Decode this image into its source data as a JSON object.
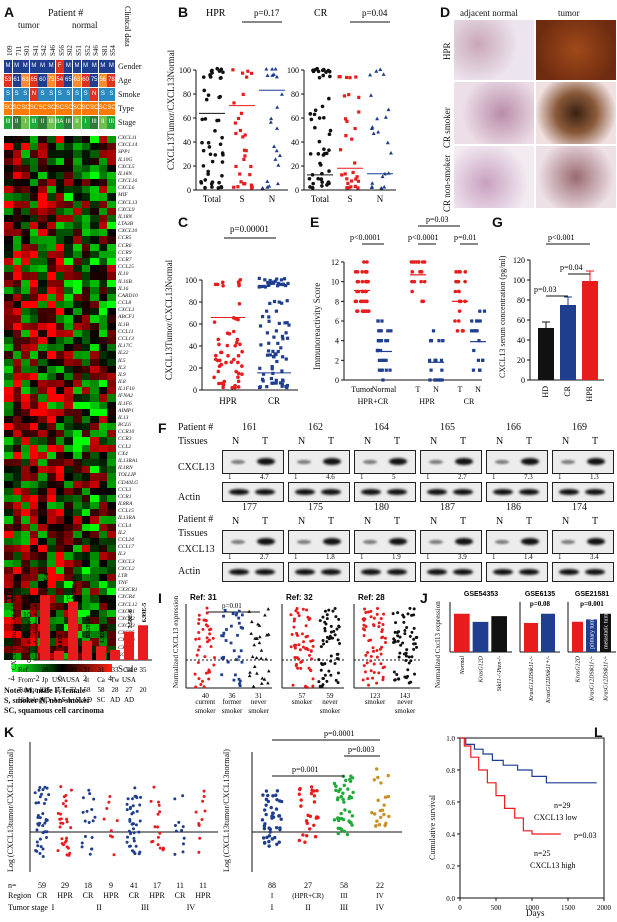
{
  "panelA": {
    "label": "A",
    "patient_header": "Patient #",
    "tumor_label": "tumor",
    "normal_label": "normal",
    "clinical_label": "Clinical data",
    "patient_ids": [
      "109",
      "711",
      "S01",
      "S41",
      "S42",
      "S46",
      "S56",
      "S02",
      "S51",
      "S52",
      "S46",
      "S81",
      "S54"
    ],
    "track_labels": [
      "Gender",
      "Age",
      "Smoke",
      "Type",
      "Stage"
    ],
    "gender": [
      "M",
      "M",
      "M",
      "M",
      "M",
      "M",
      "F",
      "M",
      "M",
      "M",
      "M",
      "M",
      "M"
    ],
    "age": [
      "53",
      "61",
      "63",
      "65",
      "60",
      "75",
      "54",
      "65",
      "63",
      "60",
      "75",
      "56",
      "78"
    ],
    "smoke": [
      "S",
      "S",
      "S",
      "N",
      "S",
      "S",
      "S",
      "S",
      "S",
      "S",
      "N",
      "S",
      "S"
    ],
    "type": [
      "SC",
      "SC",
      "SC",
      "SC",
      "SC",
      "SC",
      "SC",
      "SC",
      "SC",
      "SC",
      "SC",
      "SC",
      "SC"
    ],
    "stage": [
      "III",
      "II",
      "I",
      "III",
      "II",
      "III",
      "IIA",
      "III",
      "II",
      "I",
      "III",
      "II",
      "III"
    ],
    "genes": [
      "CXCL11",
      "CXCL14",
      "SPP1",
      "IL10G",
      "CXCL5",
      "IL18N",
      "CXCL16",
      "CXCL6",
      "MIF",
      "CXCL13",
      "CXCL9",
      "IL18N",
      "LTA3B",
      "CXCL10",
      "CCR5",
      "CCR6",
      "CCR9",
      "CCR7",
      "CCL25",
      "IL10",
      "IL16B",
      "IL16",
      "CARD10",
      "CCL8",
      "CXCL1",
      "ABCF1",
      "IL1B",
      "CCL11",
      "CCL13",
      "IL17C",
      "IL22",
      "IL5",
      "IL3",
      "IL9",
      "IL8",
      "IL1F10",
      "IFNA2",
      "IL1F6",
      "AIMP1",
      "IL13",
      "BCL6",
      "CCR10",
      "CCR3",
      "CCL2",
      "CX4",
      "IL13RA1",
      "IL1RN",
      "TOLLIP",
      "CD40LG",
      "CCL3",
      "CCR1",
      "IL8RA",
      "CCL15",
      "IL13RA",
      "CCL4",
      "IL2",
      "CCL24",
      "CCL17",
      "IL3",
      "CXCL3",
      "CXCL2",
      "LTB",
      "TNF",
      "CX3CR1",
      "CXCR4",
      "CXCL12",
      "CXCR1",
      "CXCR2",
      "CXCR3",
      "CXCR5",
      "CXCR6",
      "CXCL1",
      "XCR1"
    ],
    "scale_ticks": [
      "-4",
      "-2",
      "0",
      "2",
      "4"
    ],
    "scale_label": "Scale",
    "note_lines": [
      "Note:  M, male   F, female",
      "S, smoker  N, non-smoker",
      "SC, squamous cell carcinoma"
    ],
    "colors": {
      "green": "#1faa3a",
      "red": "#e03020",
      "tumor_bar": "#ff7a00"
    }
  },
  "panelB": {
    "label": "B",
    "ylabel": "CXCL13Tumor/CXCL13Normal",
    "charts": [
      {
        "title": "HPR",
        "pvalue": "p=0.17",
        "categories": [
          "Total",
          "S",
          "N"
        ],
        "yticks": [
          "0",
          "20",
          "40",
          "60",
          "80",
          "100"
        ],
        "medians": [
          68,
          75,
          89
        ]
      },
      {
        "title": "CR",
        "pvalue": "p=0.04",
        "categories": [
          "Total",
          "S",
          "N"
        ],
        "yticks": [
          "0",
          "20",
          "40",
          "60",
          "80",
          "100"
        ],
        "medians": [
          12,
          18,
          13
        ]
      }
    ]
  },
  "panelC": {
    "label": "C",
    "ylabel": "CXCL13Tumor/CXCL13Normal",
    "pvalue": "p=0.00001",
    "categories": [
      "HPR",
      "CR"
    ],
    "yticks": [
      "0",
      "20",
      "40",
      "60",
      "80",
      "100"
    ],
    "medians": [
      70,
      15
    ]
  },
  "panelD": {
    "label": "D",
    "col_labels": [
      "adjacent normal",
      "tumor"
    ],
    "row_labels": [
      "HPR",
      "CR smoker",
      "CR non-smoker"
    ]
  },
  "panelE": {
    "label": "E",
    "ylabel": "Immunoreactivity Score",
    "yticks": [
      "0",
      "2",
      "4",
      "6",
      "8",
      "10",
      "12"
    ],
    "pvalues": [
      "p<0.0001",
      "p<0.0001",
      "p=0.03",
      "p=0.01"
    ],
    "x_labels": [
      "Tumor",
      "Normal",
      "T",
      "N",
      "T",
      "N"
    ],
    "group_labels": [
      "HPR+CR",
      "HPR",
      "CR"
    ],
    "means": [
      9.1,
      2.9,
      10.7,
      1.8,
      8.0,
      3.9
    ]
  },
  "panelG": {
    "label": "G",
    "ylabel": "CXCL13 serum concentration (pg/ml)",
    "yticks": [
      "0",
      "20",
      "40",
      "60",
      "80",
      "100",
      "120"
    ],
    "categories": [
      "HD",
      "CR",
      "HPR"
    ],
    "values": [
      52,
      75,
      99
    ],
    "pvalues": [
      "p<0.001",
      "p=0.03",
      "p=0.04"
    ],
    "colors": [
      "#111111",
      "#1f3e8f",
      "#e81c1c"
    ]
  },
  "panelF": {
    "label": "F",
    "patient_label": "Patient #",
    "tissues_label": "Tissues",
    "row1_patients": [
      "161",
      "162",
      "164",
      "165",
      "166",
      "169"
    ],
    "row2_patients": [
      "177",
      "175",
      "180",
      "187",
      "186",
      "174"
    ],
    "lane_labels": [
      "N",
      "T"
    ],
    "protein": "CXCL13",
    "loading": "Actin",
    "row1_ratios": [
      [
        "1",
        "4.7"
      ],
      [
        "1",
        "4.6"
      ],
      [
        "1",
        "5"
      ],
      [
        "1",
        "2.7"
      ],
      [
        "1",
        "7.3"
      ],
      [
        "1",
        "1.3"
      ]
    ],
    "row2_ratios": [
      [
        "1",
        "2.7"
      ],
      [
        "1",
        "1.8"
      ],
      [
        "1",
        "1.9"
      ],
      [
        "1",
        "3.9"
      ],
      [
        "1",
        "1.4"
      ],
      [
        "1",
        "3.4"
      ]
    ]
  },
  "panelH": {
    "label": "H",
    "ylabel": "CXCL13tumor/CXCL13normal",
    "pstar": "P=",
    "yticks": [
      "0",
      "2",
      "4",
      "6",
      "8",
      "10",
      "12",
      "14"
    ],
    "bar_values": [
      14.2,
      2.0,
      12.8,
      4.2,
      3.0,
      2.2,
      6.2,
      7.6
    ],
    "bar_pvals": [
      "1.05E-6",
      "0.022",
      "3.59E-12",
      "5.32E-14",
      "1.92E-7",
      "",
      "7.58E-8",
      "6.99E-5"
    ],
    "ref_label": "Ref",
    "refs": [
      "28",
      "29",
      "30",
      "31",
      "31",
      "33",
      "34",
      "35"
    ],
    "from_label": "From",
    "from": [
      "Jp",
      "USA",
      "USA",
      "It",
      "Ca",
      "Tw",
      "USA",
      ""
    ],
    "tumor_n_label": "Tumor, n=",
    "tumor_n": [
      "226",
      "153",
      "72",
      "58",
      "58",
      "28",
      "27",
      "20"
    ],
    "histology_label": "Histology",
    "histology": [
      "AD",
      "A+S",
      "A+S",
      "AD",
      "SC",
      "AD",
      "AD",
      ""
    ]
  },
  "panelI": {
    "label": "I",
    "ylabel": "Normalized CXCL13 expression",
    "charts": [
      {
        "title": "Ref: 31",
        "pvalue": "p=0.01",
        "categories": [
          "current smoker",
          "former smoker",
          "never smoker"
        ],
        "n": [
          "40",
          "36",
          "31"
        ]
      },
      {
        "title": "Ref: 32",
        "pvalue": "",
        "categories": [
          "smoker",
          "never smoker"
        ],
        "n": [
          "57",
          "59"
        ]
      },
      {
        "title": "Ref: 28",
        "pvalue": "",
        "categories": [
          "smoker",
          "never smoker"
        ],
        "n": [
          "123",
          "143"
        ]
      }
    ]
  },
  "panelJ": {
    "label": "J",
    "ylabel": "Normalized Cxcl13 expression",
    "charts": [
      {
        "title": "GSE54353",
        "pvalue": "",
        "categories": [
          "Normal",
          "KrasG12D",
          "Stk11-/-Pten-/-"
        ],
        "values": [
          8.0,
          6.3,
          7.5
        ]
      },
      {
        "title": "GSE6135",
        "pvalue": "p=0.08",
        "categories": [
          "KrasG12DStk11-/-",
          "KrasG12DStk11+/-"
        ],
        "values": [
          4.4,
          5.8
        ]
      },
      {
        "title": "GSE21581",
        "pvalue": "p=0.001",
        "categories": [
          "KrasG12D",
          "KrasG12DStk11-/-",
          "KrasG12DStk11-/-"
        ],
        "values": [
          6.4,
          6.9,
          8.1
        ],
        "bar_text": [
          "",
          "primary tumor",
          "metastatic tumor"
        ]
      }
    ],
    "colors": [
      "#e81c1c",
      "#1f3e8f",
      "#111111"
    ]
  },
  "panelK": {
    "label": "K",
    "ylabel": "Log (CXCL13tumor/CXCL13normal)",
    "left_n": [
      "59",
      "29",
      "18",
      "9",
      "41",
      "17",
      "11",
      "11"
    ],
    "left_regions": [
      "CR",
      "HPR",
      "CR",
      "HPR",
      "CR",
      "HPR",
      "CR",
      "HPR"
    ],
    "left_stages": [
      "I",
      "II",
      "III",
      "IV"
    ],
    "right_n": [
      "88",
      "27",
      "58",
      "22"
    ],
    "right_regions": [
      "I",
      "(HPR+CR)",
      "III",
      "IV"
    ],
    "right_stages": [
      "I",
      "II",
      "III",
      "IV"
    ],
    "pvalues": [
      "p=0.0001",
      "p=0.003",
      "p=0.001"
    ],
    "n_label": "n=",
    "region_label": "Region",
    "stage_label": "Tumor stage"
  },
  "panelL": {
    "label": "L",
    "ylabel": "Cumulative survival",
    "xlabel": "Days",
    "xticks": [
      "0",
      "500",
      "1000",
      "1500",
      "2000"
    ],
    "yticks": [
      "0.0",
      "0.2",
      "0.4",
      "0.6",
      "0.8",
      "1.0"
    ],
    "groups": [
      {
        "name": "CXCL13 low",
        "n": "n=29",
        "color": "#1f3e8f"
      },
      {
        "name": "CXCL13 high",
        "n": "n=25",
        "color": "#e81c1c"
      }
    ],
    "pvalue": "p=0.03"
  }
}
